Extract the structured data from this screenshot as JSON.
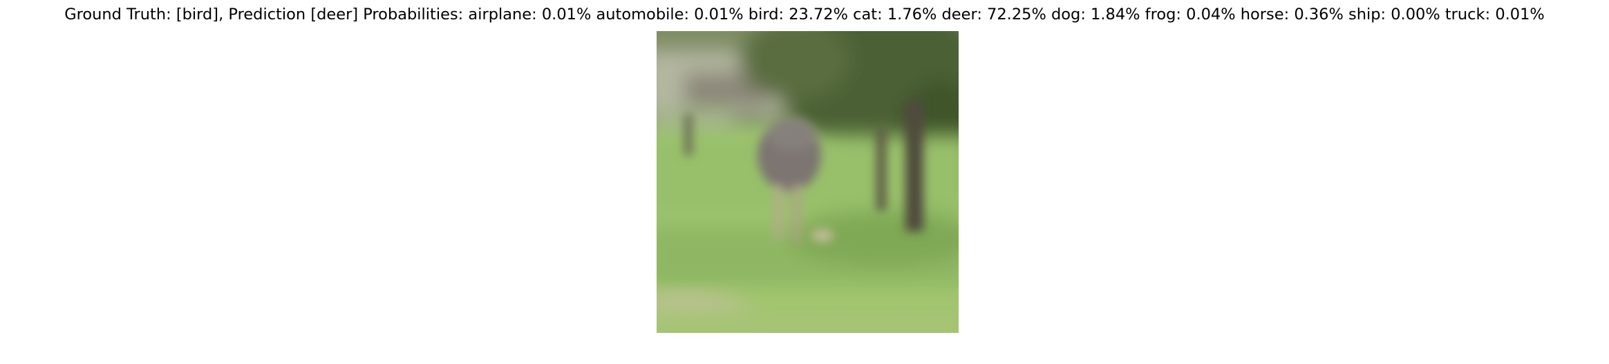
{
  "title": "Ground Truth: [bird], Prediction [deer] Probabilities: airplane: 0.01% automobile: 0.01% bird: 23.72% cat: 1.76% deer: 72.25% dog: 1.84% frog: 0.04% horse: 0.36% ship: 0.00% truck: 0.01%",
  "ground_truth": "bird",
  "prediction": "deer",
  "probabilities": [
    {
      "label": "airplane",
      "value": 0.01
    },
    {
      "label": "automobile",
      "value": 0.01
    },
    {
      "label": "bird",
      "value": 23.72
    },
    {
      "label": "cat",
      "value": 1.76
    },
    {
      "label": "deer",
      "value": 72.25
    },
    {
      "label": "dog",
      "value": 1.84
    },
    {
      "label": "frog",
      "value": 0.04
    },
    {
      "label": "horse",
      "value": 0.36
    },
    {
      "label": "ship",
      "value": 0.0
    },
    {
      "label": "truck",
      "value": 0.01
    }
  ],
  "colors": {
    "grass": "#9cc46a",
    "grass_dark": "#6f9a47",
    "foliage": "#4a5f33",
    "trunk": "#4d4a3a",
    "bird_body": "#7a7470",
    "sky_light": "#c9d1bc"
  }
}
